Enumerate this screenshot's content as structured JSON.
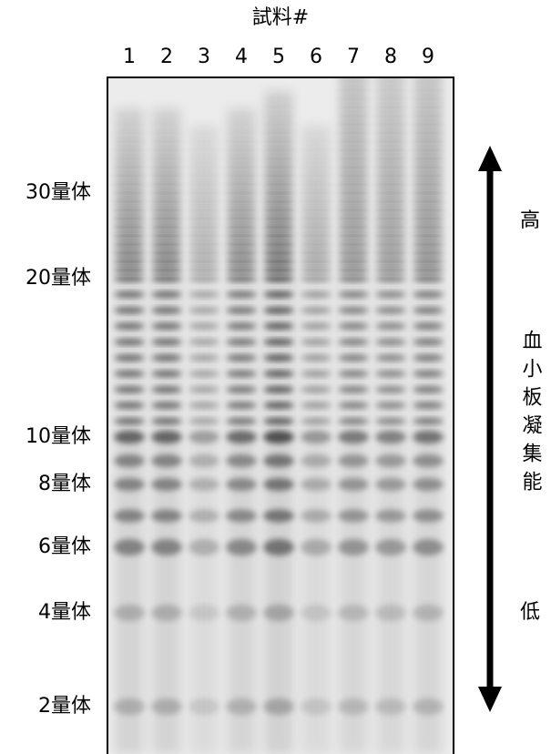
{
  "title": "試料#",
  "lanes": [
    "1",
    "2",
    "3",
    "4",
    "5",
    "6",
    "7",
    "8",
    "9"
  ],
  "size_markers": [
    "30量体",
    "20量体",
    "10量体",
    "8量体",
    "6量体",
    "4量体",
    "2量体"
  ],
  "axis_labels": {
    "high": "高",
    "function": "血小板凝集能",
    "low": "低"
  }
}
